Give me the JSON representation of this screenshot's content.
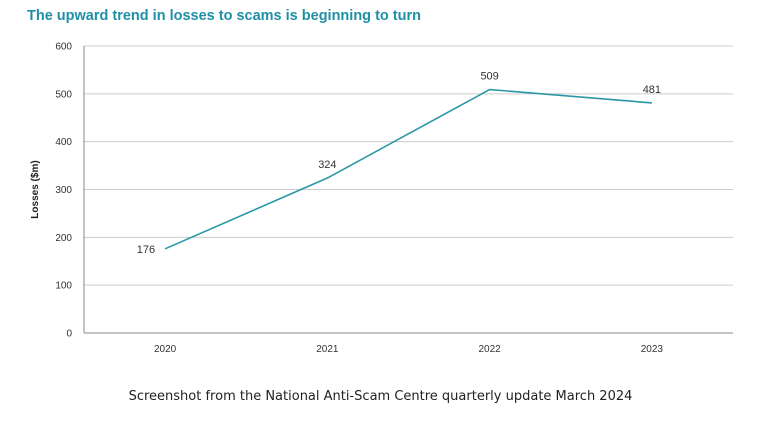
{
  "chart_data": {
    "type": "line",
    "title": "The upward trend in losses to scams is beginning to turn",
    "xlabel": "",
    "ylabel": "Losses ($m)",
    "categories": [
      "2020",
      "2021",
      "2022",
      "2023"
    ],
    "series": [
      {
        "values": [
          176,
          324,
          509,
          481
        ]
      }
    ],
    "data_labels": [
      "176",
      "324",
      "509",
      "481"
    ],
    "y_ticks": [
      "0",
      "100",
      "200",
      "300",
      "400",
      "500",
      "600"
    ],
    "ylim": [
      0,
      600
    ],
    "grid": true,
    "legend": "none",
    "colors": {
      "line": "#2a97a8",
      "title": "#1f8fa6",
      "grid": "#cccccc"
    }
  },
  "caption": "Screenshot from the National Anti-Scam Centre quarterly update March 2024"
}
